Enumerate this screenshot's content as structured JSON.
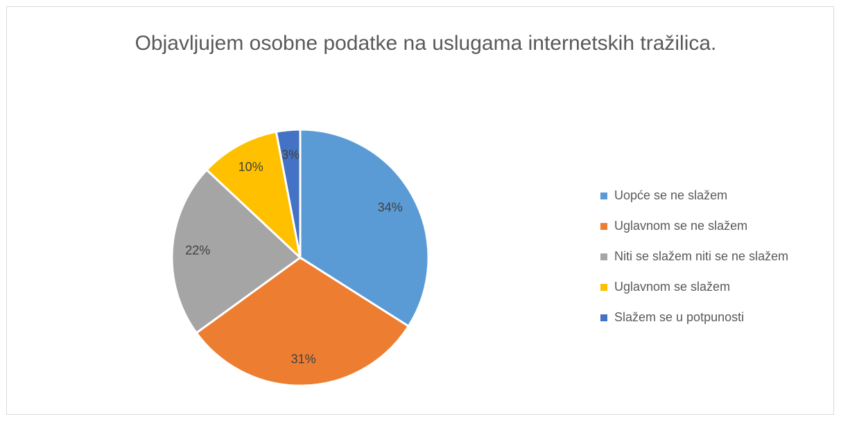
{
  "chart_data": {
    "type": "pie",
    "title": "Objavljujem osobne podatke na uslugama internetskih tražilica.",
    "categories": [
      "Uopće se ne slažem",
      "Uglavnom se ne slažem",
      "Niti se slažem niti se ne slažem",
      "Uglavnom se slažem",
      "Slažem se u potpunosti"
    ],
    "values": [
      34,
      31,
      22,
      10,
      3
    ],
    "value_labels": [
      "34%",
      "31%",
      "22%",
      "10%",
      "3%"
    ],
    "colors": [
      "#5b9bd5",
      "#ed7d31",
      "#a5a5a5",
      "#ffc000",
      "#4472c4"
    ],
    "legend": "right"
  }
}
